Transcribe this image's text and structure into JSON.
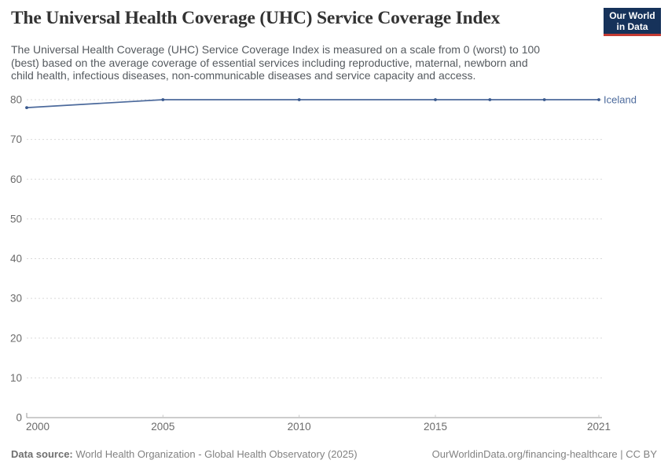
{
  "header": {
    "title": "The Universal Health Coverage (UHC) Service Coverage Index",
    "subtitle": "The Universal Health Coverage (UHC) Service Coverage Index is measured on a scale from 0 (worst) to 100 (best) based on the average coverage of essential services including reproductive, maternal, newborn and child health, infectious diseases, non-communicable diseases and service capacity and access.",
    "logo": {
      "line1": "Our World",
      "line2": "in Data"
    }
  },
  "chart_data": {
    "type": "line",
    "title": "The Universal Health Coverage (UHC) Service Coverage Index",
    "xlabel": "",
    "ylabel": "",
    "xlim": [
      2000,
      2021
    ],
    "ylim": [
      0,
      80
    ],
    "x_ticks": [
      2000,
      2005,
      2010,
      2015,
      2021
    ],
    "y_ticks": [
      0,
      10,
      20,
      30,
      40,
      50,
      60,
      70,
      80
    ],
    "grid": "horizontal-dashed",
    "legend_position": "end-of-line",
    "series": [
      {
        "name": "Iceland",
        "color": "#4c6a9c",
        "x": [
          2000,
          2005,
          2010,
          2015,
          2017,
          2019,
          2021
        ],
        "values": [
          78,
          80,
          80,
          80,
          80,
          80,
          80
        ]
      }
    ]
  },
  "footer": {
    "data_source_label": "Data source:",
    "data_source_value": "World Health Organization - Global Health Observatory (2025)",
    "citation": "OurWorldinData.org/financing-healthcare | CC BY"
  },
  "colors": {
    "line": "#4c6a9c",
    "marker": "#39598e",
    "grid": "#d9d9d9",
    "axis": "#9a9a9a",
    "minor_tick": "#c9c9c9",
    "tick_label": "#6b6b6b",
    "title_text": "#333333",
    "subtitle_text": "#555a5f",
    "footer_text": "#828282",
    "logo_bg": "#16325a",
    "logo_red": "#c43b33"
  }
}
